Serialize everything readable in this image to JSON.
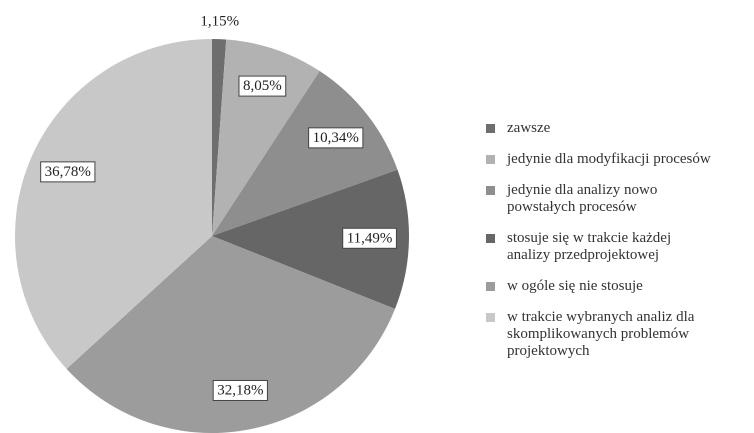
{
  "chart_data": {
    "type": "pie",
    "categories": [
      "zawsze",
      "jedynie dla modyfikacji procesów",
      "jedynie dla analizy nowo powstałych procesów",
      "stosuje się w trakcie każdej analizy przedprojektowej",
      "w ogóle się nie stosuje",
      "w trakcie wybranych analiz dla skomplikowanych problemów projektowych"
    ],
    "values": [
      1.15,
      8.05,
      10.34,
      11.49,
      32.18,
      36.78
    ],
    "value_labels": [
      "1,15%",
      "8,05%",
      "10,34%",
      "11,49%",
      "32,18%",
      "36,78%"
    ],
    "colors": [
      "#6e6e6e",
      "#b2b2b2",
      "#8e8e8e",
      "#666666",
      "#9c9c9c",
      "#c8c8c8"
    ],
    "legend": "right"
  }
}
